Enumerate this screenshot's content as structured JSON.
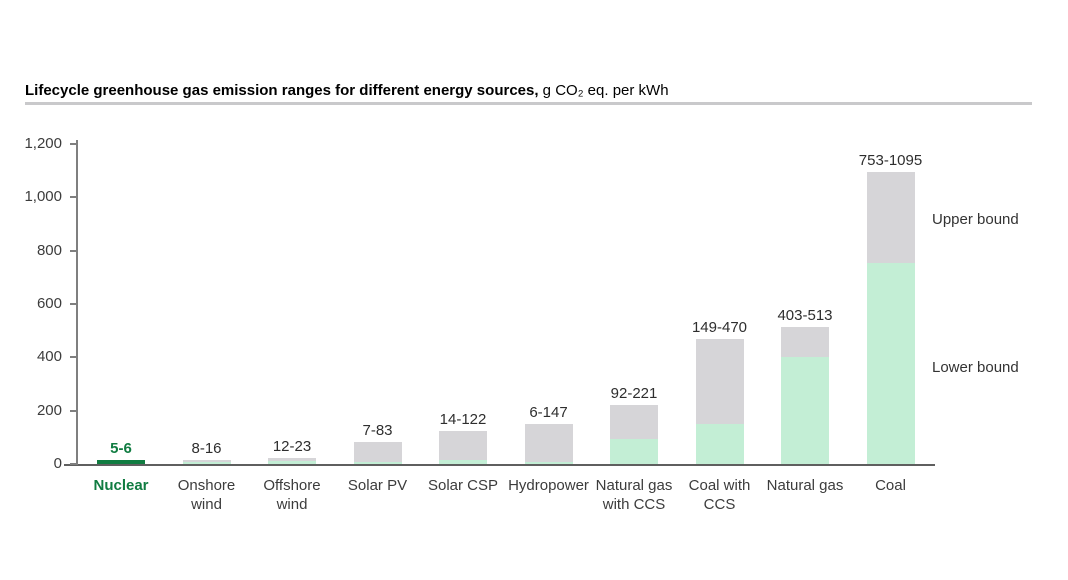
{
  "header": {
    "title_bold": "Lifecycle greenhouse gas emission ranges for different energy sources,",
    "title_unit": " g CO₂ eq. per kWh"
  },
  "chart_data": {
    "type": "bar",
    "stacked": true,
    "title": "Lifecycle greenhouse gas emission ranges for different energy sources, g CO₂ eq. per kWh",
    "categories": [
      "Nuclear",
      "Onshore wind",
      "Offshore wind",
      "Solar PV",
      "Solar CSP",
      "Hydropower",
      "Natural gas with CCS",
      "Coal with CCS",
      "Natural gas",
      "Coal"
    ],
    "series": [
      {
        "name": "Lower bound",
        "values": [
          5,
          8,
          12,
          7,
          14,
          6,
          92,
          149,
          403,
          753
        ]
      },
      {
        "name": "Upper bound",
        "values": [
          6,
          16,
          23,
          83,
          122,
          147,
          221,
          470,
          513,
          1095
        ]
      }
    ],
    "bar_labels": [
      "5-6",
      "8-16",
      "12-23",
      "7-83",
      "14-122",
      "6-147",
      "92-221",
      "149-470",
      "403-513",
      "753-1095"
    ],
    "xlabel": "",
    "ylabel": "",
    "ylim": [
      0,
      1200
    ],
    "ytick_values": [
      0,
      200,
      400,
      600,
      800,
      1000,
      1200
    ],
    "ytick_labels": [
      "0",
      "200",
      "400",
      "600",
      "800",
      "1,000",
      "1,200"
    ],
    "grid": false,
    "legend_position": "right",
    "annotations": [
      {
        "text": "Upper bound"
      },
      {
        "text": "Lower bound"
      }
    ],
    "highlight_category": "Nuclear",
    "colors": {
      "lower_bound": "#c3eed5",
      "upper_bound": "#d6d5d8",
      "highlight": "#107c41",
      "axis": "#7f7f7f"
    }
  }
}
